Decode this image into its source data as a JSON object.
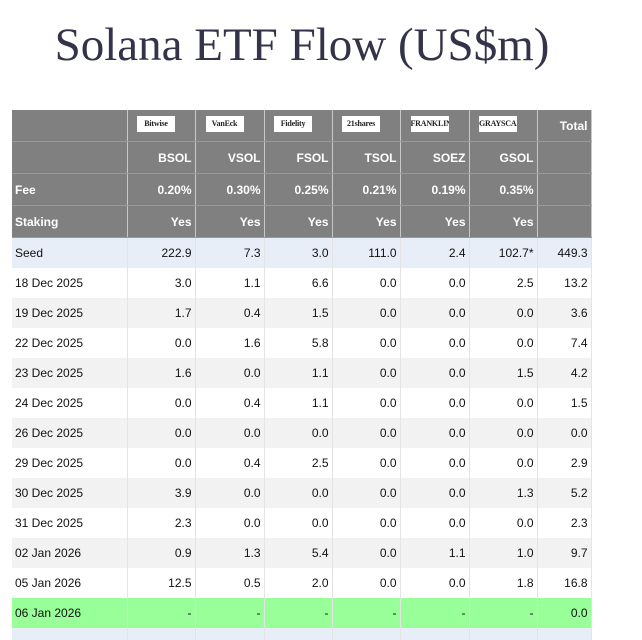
{
  "header": {
    "title": "Solana ETF Flow (US$m)"
  },
  "table": {
    "logos": [
      "Bitwise",
      "VanEck",
      "Fidelity",
      "21shares",
      "FRANKLIN TEMPLETON",
      "GRAYSCALE"
    ],
    "total_label": "Total",
    "tickers": [
      "BSOL",
      "VSOL",
      "FSOL",
      "TSOL",
      "SOEZ",
      "GSOL"
    ],
    "fee": {
      "label": "Fee",
      "values": [
        "0.20%",
        "0.30%",
        "0.25%",
        "0.21%",
        "0.19%",
        "0.35%"
      ]
    },
    "staking": {
      "label": "Staking",
      "values": [
        "Yes",
        "Yes",
        "Yes",
        "Yes",
        "Yes",
        "Yes"
      ]
    },
    "rows": [
      [
        "Seed",
        "222.9",
        "7.3",
        "3.0",
        "111.0",
        "2.4",
        "102.7*",
        "449.3"
      ],
      [
        "18 Dec 2025",
        "3.0",
        "1.1",
        "6.6",
        "0.0",
        "0.0",
        "2.5",
        "13.2"
      ],
      [
        "19 Dec 2025",
        "1.7",
        "0.4",
        "1.5",
        "0.0",
        "0.0",
        "0.0",
        "3.6"
      ],
      [
        "22 Dec 2025",
        "0.0",
        "1.6",
        "5.8",
        "0.0",
        "0.0",
        "0.0",
        "7.4"
      ],
      [
        "23 Dec 2025",
        "1.6",
        "0.0",
        "1.1",
        "0.0",
        "0.0",
        "1.5",
        "4.2"
      ],
      [
        "24 Dec 2025",
        "0.0",
        "0.4",
        "1.1",
        "0.0",
        "0.0",
        "0.0",
        "1.5"
      ],
      [
        "26 Dec 2025",
        "0.0",
        "0.0",
        "0.0",
        "0.0",
        "0.0",
        "0.0",
        "0.0"
      ],
      [
        "29 Dec 2025",
        "0.0",
        "0.4",
        "2.5",
        "0.0",
        "0.0",
        "0.0",
        "2.9"
      ],
      [
        "30 Dec 2025",
        "3.9",
        "0.0",
        "0.0",
        "0.0",
        "0.0",
        "1.3",
        "5.2"
      ],
      [
        "31 Dec 2025",
        "2.3",
        "0.0",
        "0.0",
        "0.0",
        "0.0",
        "0.0",
        "2.3"
      ],
      [
        "02 Jan 2026",
        "0.9",
        "1.3",
        "5.4",
        "0.0",
        "1.1",
        "1.0",
        "9.7"
      ],
      [
        "05 Jan 2026",
        "12.5",
        "0.5",
        "2.0",
        "0.0",
        "0.0",
        "1.8",
        "16.8"
      ],
      [
        "06 Jan 2026",
        "-",
        "-",
        "-",
        "-",
        "-",
        "-",
        "0.0"
      ]
    ]
  }
}
